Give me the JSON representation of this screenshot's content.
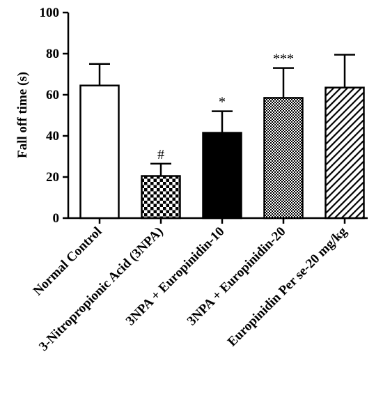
{
  "chart_data": {
    "type": "bar",
    "title": "",
    "xlabel": "",
    "ylabel": "Fall off time (s)",
    "ylim": [
      0,
      100
    ],
    "yticks": [
      0,
      20,
      40,
      60,
      80,
      100
    ],
    "grid": false,
    "categories": [
      "Normal Control",
      "3-Nitropropionic Acid (3NPA)",
      "3NPA + Europinidin-10",
      "3NPA +  Europinidin-20",
      "Europinidin Per se-20 mg/kg"
    ],
    "values": [
      64.5,
      20.5,
      41.5,
      58.5,
      63.5
    ],
    "errors": [
      10.5,
      6,
      10.5,
      14.5,
      16
    ],
    "annotations": [
      "",
      "#",
      "*",
      "***",
      ""
    ],
    "fills": [
      "white",
      "checker",
      "black",
      "fine-checker",
      "diagonal"
    ]
  }
}
